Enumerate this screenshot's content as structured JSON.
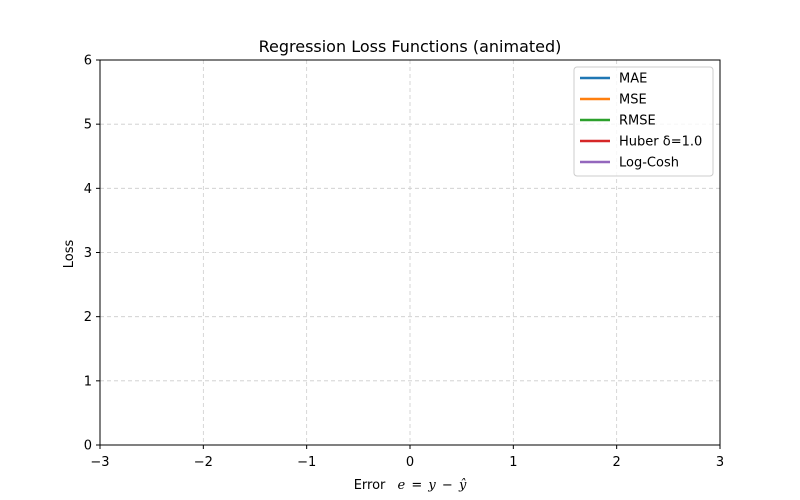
{
  "chart_data": {
    "type": "line",
    "title": "Regression Loss Functions (animated)",
    "xlabel": {
      "prefix": "Error",
      "formula_e": "e",
      "formula_eq": "=",
      "formula_y": "y",
      "formula_minus": "−",
      "formula_yhat": "ŷ"
    },
    "ylabel": "Loss",
    "xlim": [
      -3,
      3
    ],
    "ylim": [
      0,
      6
    ],
    "x_ticks": [
      -3,
      -2,
      -1,
      0,
      1,
      2,
      3
    ],
    "x_tick_labels": [
      "−3",
      "−2",
      "−1",
      "0",
      "1",
      "2",
      "3"
    ],
    "y_ticks": [
      0,
      1,
      2,
      3,
      4,
      5,
      6
    ],
    "y_tick_labels": [
      "0",
      "1",
      "2",
      "3",
      "4",
      "5",
      "6"
    ],
    "grid": true,
    "legend_position": "top-right",
    "series": [
      {
        "name": "MAE",
        "color": "#1f77b4",
        "x": [],
        "y": []
      },
      {
        "name": "MSE",
        "color": "#ff7f0e",
        "x": [],
        "y": []
      },
      {
        "name": "RMSE",
        "color": "#2ca02c",
        "x": [],
        "y": []
      },
      {
        "name": "Huber δ=1.0",
        "color": "#d62728",
        "x": [],
        "y": []
      },
      {
        "name": "Log-Cosh",
        "color": "#9467bd",
        "x": [],
        "y": []
      }
    ]
  }
}
